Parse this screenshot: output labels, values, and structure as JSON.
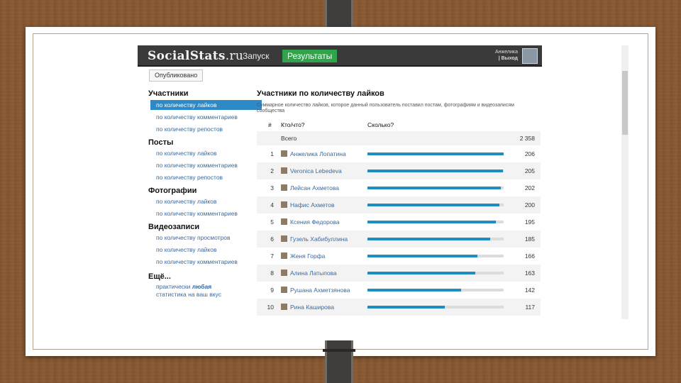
{
  "app": {
    "logo_main": "SocialStats",
    "logo_tld": ".ru",
    "nav_launch": "Запуск",
    "nav_results": "Результаты",
    "user_name": "Анжелика",
    "user_logout": "| Выход",
    "published": "Опубликовано"
  },
  "sidebar": {
    "sections": [
      {
        "title": "Участники",
        "items": [
          "по количеству лайков",
          "по количеству комментариев",
          "по количеству репостов"
        ]
      },
      {
        "title": "Посты",
        "items": [
          "по количеству лайков",
          "по количеству комментариев",
          "по количеству репостов"
        ]
      },
      {
        "title": "Фотографии",
        "items": [
          "по количеству лайков",
          "по количеству комментариев"
        ]
      },
      {
        "title": "Видеозаписи",
        "items": [
          "по количеству просмотров",
          "по количеству лайков",
          "по количеству комментариев"
        ]
      }
    ],
    "more_title": "Ещё...",
    "more_line1_a": "практически ",
    "more_line1_b": "любая",
    "more_line2": "статистика на ваш вкус"
  },
  "main": {
    "title": "Участники по количеству лайков",
    "description": "Суммарное количество лайков, которое данный пользователь поставил постам, фотографиям и видеозаписям сообщества",
    "col_num": "#",
    "col_who": "Кто/что?",
    "col_count": "Сколько?",
    "total_label": "Всего",
    "total_value": "2 358",
    "rows": [
      {
        "rank": "1",
        "name": "Анжелика Лопатина",
        "value": "206",
        "pct": 100
      },
      {
        "rank": "2",
        "name": "Veronica Lebedeva",
        "value": "205",
        "pct": 99.5
      },
      {
        "rank": "3",
        "name": "Лейсан Ахметова",
        "value": "202",
        "pct": 98
      },
      {
        "rank": "4",
        "name": "Нафис Ахметов",
        "value": "200",
        "pct": 97
      },
      {
        "rank": "5",
        "name": "Ксения Федорова",
        "value": "195",
        "pct": 94.5
      },
      {
        "rank": "6",
        "name": "Гузель Хабибуллина",
        "value": "185",
        "pct": 90
      },
      {
        "rank": "7",
        "name": "Женя Горфа",
        "value": "166",
        "pct": 80.5
      },
      {
        "rank": "8",
        "name": "Алина Латыпова",
        "value": "163",
        "pct": 79
      },
      {
        "rank": "9",
        "name": "Рушана Ахметзянова",
        "value": "142",
        "pct": 69
      },
      {
        "rank": "10",
        "name": "Рина Каширова",
        "value": "117",
        "pct": 57
      }
    ]
  },
  "colors": {
    "accent": "#2d8ac6",
    "bar": "#1f8dc2",
    "results_button": "#2fa44a",
    "header": "#3a3a3a",
    "wood": "#8a5a33"
  }
}
